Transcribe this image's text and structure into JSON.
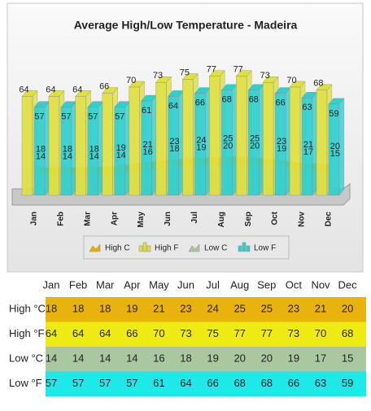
{
  "chart_data": {
    "type": "bar",
    "title": "Average High/Low Temperature - Madeira",
    "categories": [
      "Jan",
      "Feb",
      "Mar",
      "Apr",
      "May",
      "Jun",
      "Jul",
      "Aug",
      "Sep",
      "Oct",
      "Nov",
      "Dec"
    ],
    "ylim": [
      0,
      80
    ],
    "legend": "bottom",
    "series": [
      {
        "name": "High C",
        "type": "area",
        "color": "#e8b000",
        "values": [
          18,
          18,
          18,
          19,
          21,
          23,
          24,
          25,
          25,
          23,
          21,
          20
        ]
      },
      {
        "name": "High F",
        "type": "bar",
        "color": "#e0e040",
        "values": [
          64,
          64,
          64,
          66,
          70,
          73,
          75,
          77,
          77,
          73,
          70,
          68
        ]
      },
      {
        "name": "Low C",
        "type": "area",
        "color": "#a8c8a0",
        "values": [
          14,
          14,
          14,
          14,
          16,
          18,
          19,
          20,
          20,
          19,
          17,
          15
        ]
      },
      {
        "name": "Low F",
        "type": "bar",
        "color": "#30d0d0",
        "values": [
          57,
          57,
          57,
          57,
          61,
          64,
          66,
          68,
          68,
          66,
          63,
          59
        ]
      }
    ]
  },
  "table": {
    "header": [
      "Jan",
      "Feb",
      "Mar",
      "Apr",
      "May",
      "Jun",
      "Jul",
      "Aug",
      "Sep",
      "Oct",
      "Nov",
      "Dec"
    ],
    "rows": [
      {
        "label": "High °C",
        "color": "#e9b30d",
        "cells": [
          18,
          18,
          18,
          19,
          21,
          23,
          24,
          25,
          25,
          23,
          21,
          20
        ]
      },
      {
        "label": "High °F",
        "color": "#f0ea14",
        "cells": [
          64,
          64,
          64,
          66,
          70,
          73,
          75,
          77,
          77,
          73,
          70,
          68
        ]
      },
      {
        "label": "Low °C",
        "color": "#a9c8a0",
        "cells": [
          14,
          14,
          14,
          14,
          16,
          18,
          19,
          20,
          20,
          19,
          17,
          15
        ]
      },
      {
        "label": "Low °F",
        "color": "#1ee8e8",
        "cells": [
          57,
          57,
          57,
          57,
          61,
          64,
          66,
          68,
          68,
          66,
          63,
          59
        ]
      }
    ]
  }
}
